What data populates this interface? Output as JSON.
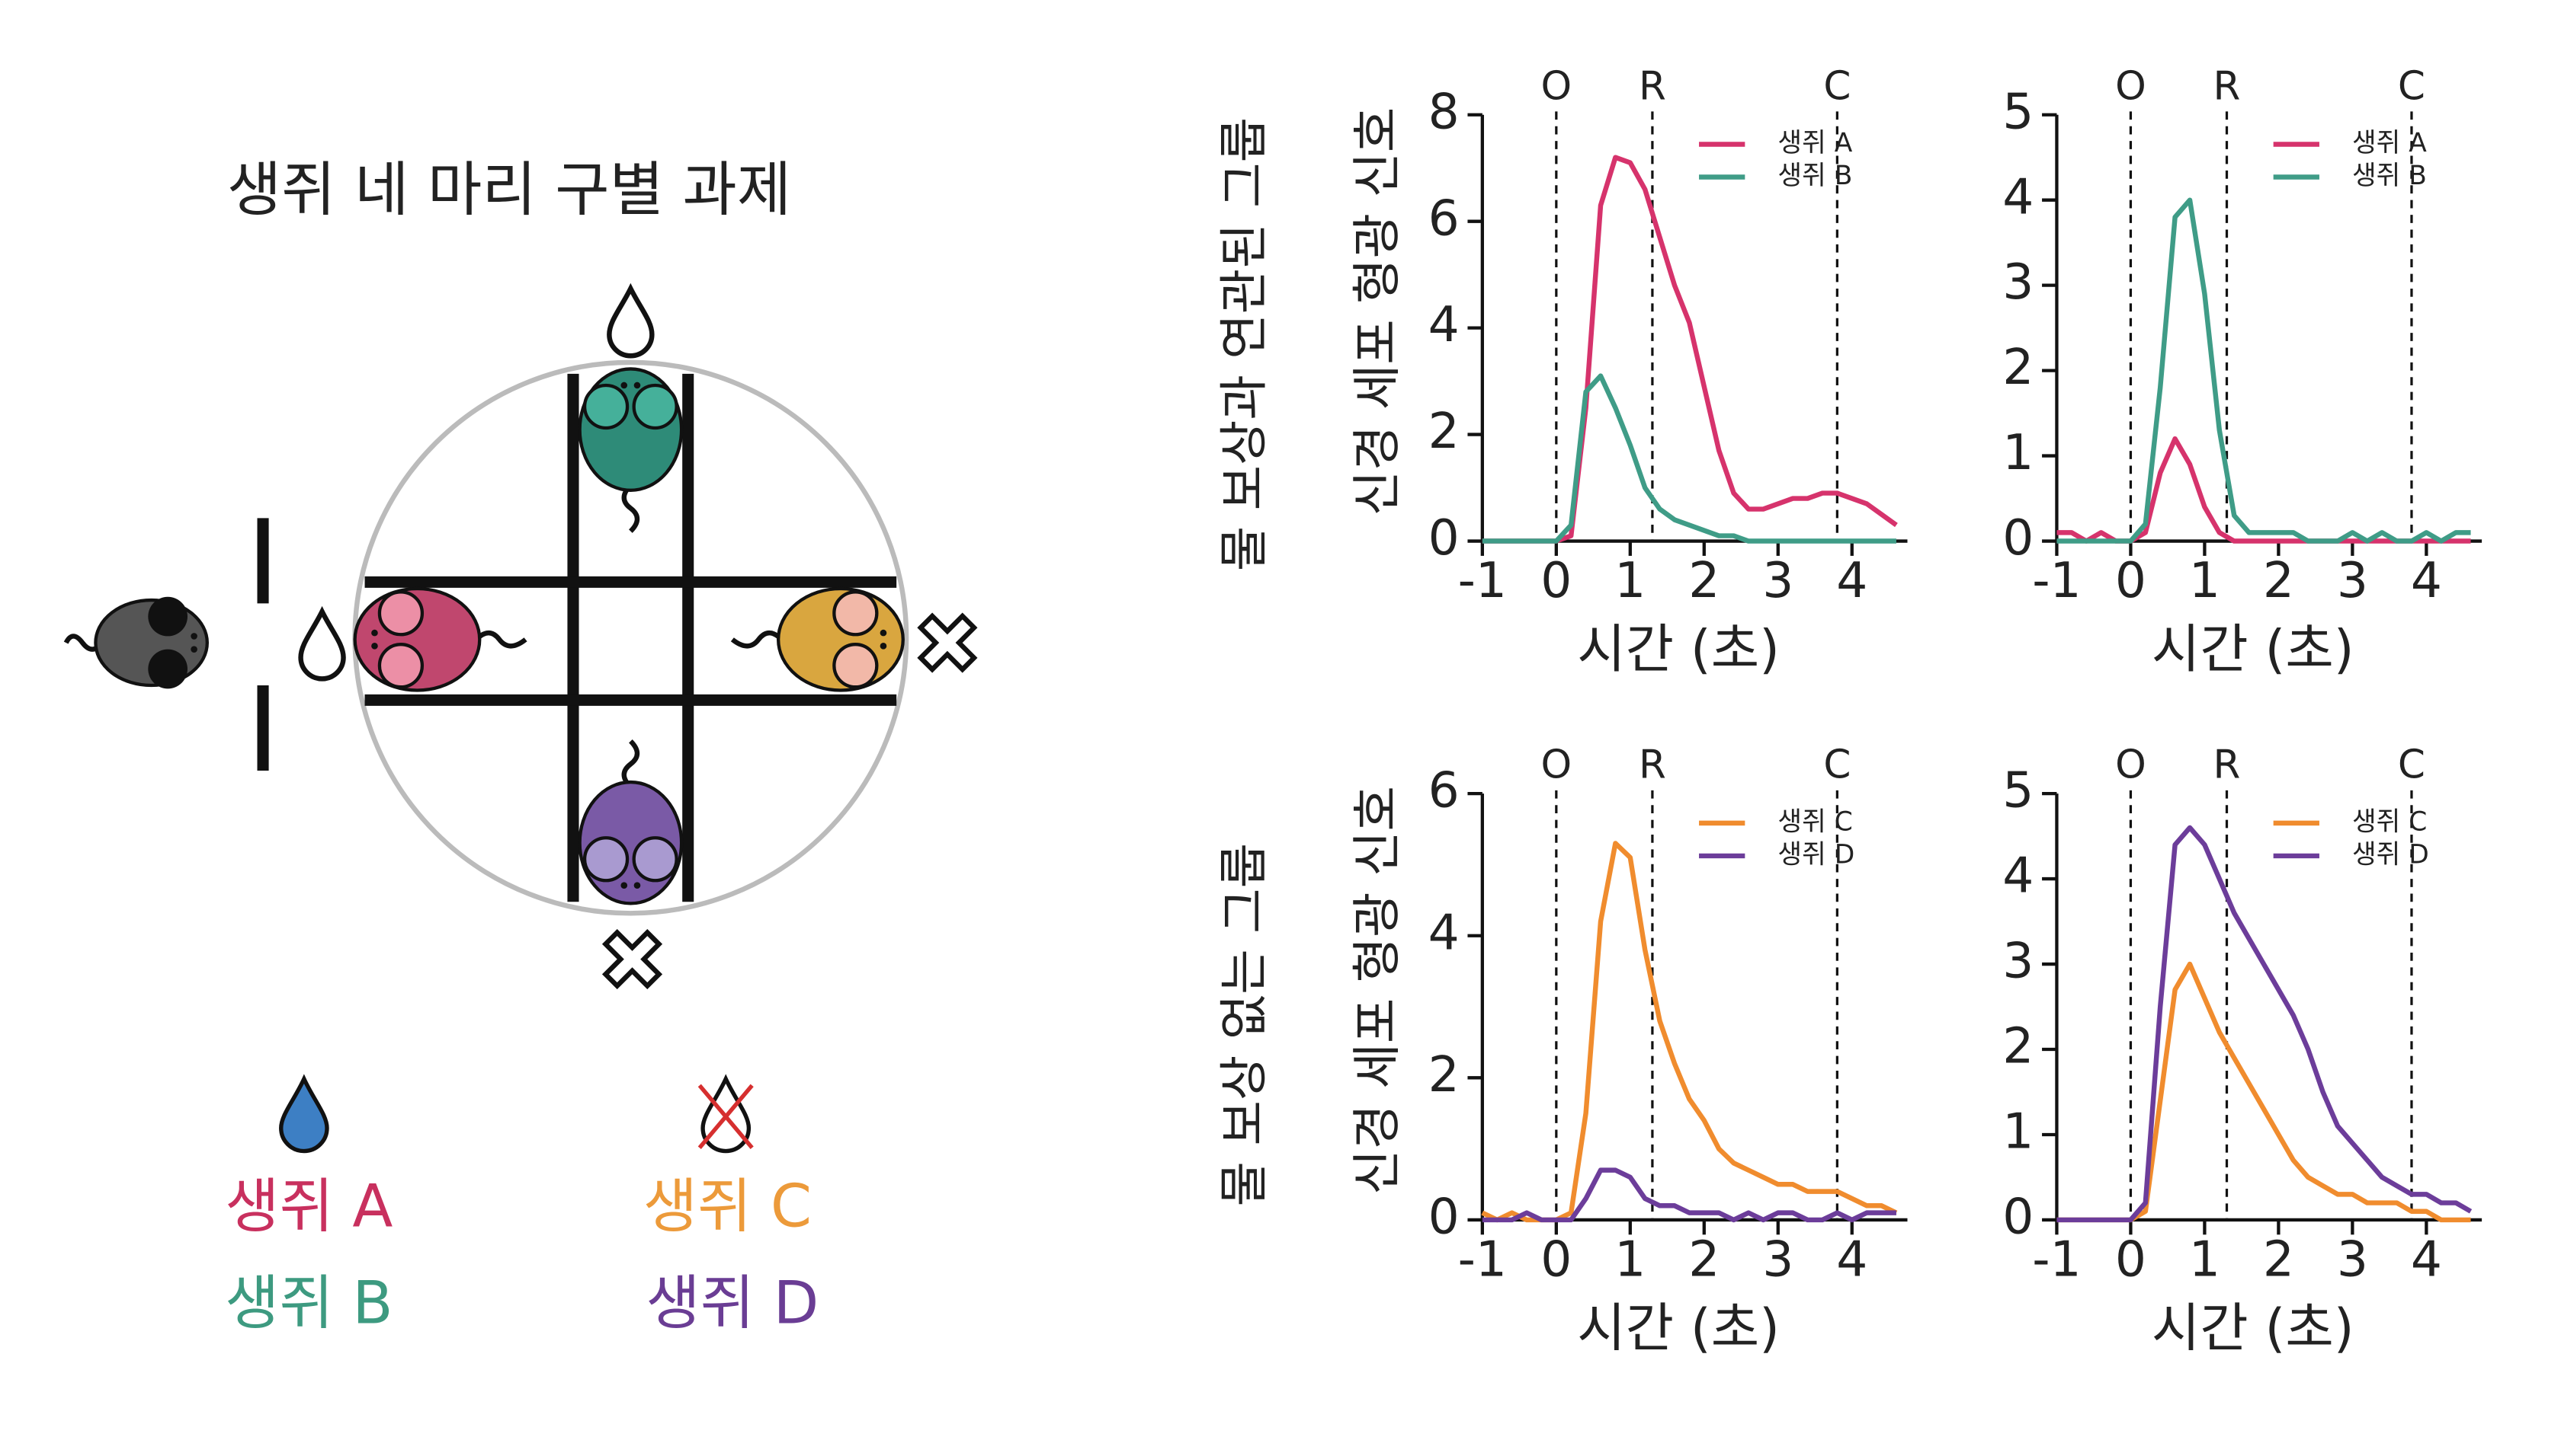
{
  "diagram": {
    "title": "생쥐 네 마리 구별 과제",
    "legend": [
      "생쥐 A",
      "생쥐 B",
      "생쥐 C",
      "생쥐 D"
    ]
  },
  "row_labels": [
    "물 보상과 연관된 그룹",
    "물 보상 없는 그룹"
  ],
  "chart_data": [
    {
      "type": "line",
      "ylabel": "신경 세포 형광 신호",
      "xlabel": "시간 (초)",
      "xlim": [
        -1,
        4.75
      ],
      "xticks": [
        -1,
        0,
        1,
        2,
        3,
        4
      ],
      "ylim": [
        0,
        8
      ],
      "yticks": [
        0,
        2,
        4,
        6,
        8
      ],
      "vlines": [
        {
          "x": 0,
          "label": "O"
        },
        {
          "x": 1.3,
          "label": "R"
        },
        {
          "x": 3.8,
          "label": "C"
        }
      ],
      "x": [
        -1,
        -0.8,
        -0.6,
        -0.4,
        -0.2,
        0,
        0.2,
        0.4,
        0.6,
        0.8,
        1.0,
        1.2,
        1.4,
        1.6,
        1.8,
        2.0,
        2.2,
        2.4,
        2.6,
        2.8,
        3.0,
        3.2,
        3.4,
        3.6,
        3.8,
        4.0,
        4.2,
        4.4,
        4.6
      ],
      "series": [
        {
          "name": "생쥐 A",
          "color": "#d6336c",
          "values": [
            0,
            0,
            0,
            0,
            0,
            0,
            0.1,
            2.5,
            6.3,
            7.2,
            7.1,
            6.6,
            5.7,
            4.8,
            4.1,
            2.9,
            1.7,
            0.9,
            0.6,
            0.6,
            0.7,
            0.8,
            0.8,
            0.9,
            0.9,
            0.8,
            0.7,
            0.5,
            0.3
          ]
        },
        {
          "name": "생쥐 B",
          "color": "#3f9c87",
          "values": [
            0,
            0,
            0,
            0,
            0,
            0,
            0.3,
            2.8,
            3.1,
            2.5,
            1.8,
            1.0,
            0.6,
            0.4,
            0.3,
            0.2,
            0.1,
            0.1,
            0,
            0,
            0,
            0,
            0,
            0,
            0,
            0,
            0,
            0,
            0
          ]
        }
      ]
    },
    {
      "type": "line",
      "xlabel": "시간 (초)",
      "xlim": [
        -1,
        4.75
      ],
      "xticks": [
        -1,
        0,
        1,
        2,
        3,
        4
      ],
      "ylim": [
        0,
        5
      ],
      "yticks": [
        0,
        1,
        2,
        3,
        4,
        5
      ],
      "vlines": [
        {
          "x": 0,
          "label": "O"
        },
        {
          "x": 1.3,
          "label": "R"
        },
        {
          "x": 3.8,
          "label": "C"
        }
      ],
      "x": [
        -1,
        -0.8,
        -0.6,
        -0.4,
        -0.2,
        0,
        0.2,
        0.4,
        0.6,
        0.8,
        1.0,
        1.2,
        1.4,
        1.6,
        1.8,
        2.0,
        2.2,
        2.4,
        2.6,
        2.8,
        3.0,
        3.2,
        3.4,
        3.6,
        3.8,
        4.0,
        4.2,
        4.4,
        4.6
      ],
      "series": [
        {
          "name": "생쥐 A",
          "color": "#d6336c",
          "values": [
            0.1,
            0.1,
            0,
            0.1,
            0,
            0,
            0.1,
            0.8,
            1.2,
            0.9,
            0.4,
            0.1,
            0,
            0,
            0,
            0,
            0,
            0,
            0,
            0,
            0,
            0,
            0,
            0,
            0,
            0,
            0,
            0,
            0
          ]
        },
        {
          "name": "생쥐 B",
          "color": "#3f9c87",
          "values": [
            0,
            0,
            0,
            0,
            0,
            0,
            0.2,
            1.8,
            3.8,
            4.0,
            2.9,
            1.3,
            0.3,
            0.1,
            0.1,
            0.1,
            0.1,
            0,
            0,
            0,
            0.1,
            0,
            0.1,
            0,
            0,
            0.1,
            0,
            0.1,
            0.1
          ]
        }
      ]
    },
    {
      "type": "line",
      "ylabel": "신경 세포 형광 신호",
      "xlabel": "시간 (초)",
      "xlim": [
        -1,
        4.75
      ],
      "xticks": [
        -1,
        0,
        1,
        2,
        3,
        4
      ],
      "ylim": [
        0,
        6
      ],
      "yticks": [
        0,
        2,
        4,
        6
      ],
      "vlines": [
        {
          "x": 0,
          "label": "O"
        },
        {
          "x": 1.3,
          "label": "R"
        },
        {
          "x": 3.8,
          "label": "C"
        }
      ],
      "x": [
        -1,
        -0.8,
        -0.6,
        -0.4,
        -0.2,
        0,
        0.2,
        0.4,
        0.6,
        0.8,
        1.0,
        1.2,
        1.4,
        1.6,
        1.8,
        2.0,
        2.2,
        2.4,
        2.6,
        2.8,
        3.0,
        3.2,
        3.4,
        3.6,
        3.8,
        4.0,
        4.2,
        4.4,
        4.6
      ],
      "series": [
        {
          "name": "생쥐 C",
          "color": "#f08c2e",
          "values": [
            0.1,
            0,
            0.1,
            0,
            0,
            0,
            0.1,
            1.5,
            4.2,
            5.3,
            5.1,
            3.8,
            2.8,
            2.2,
            1.7,
            1.4,
            1.0,
            0.8,
            0.7,
            0.6,
            0.5,
            0.5,
            0.4,
            0.4,
            0.4,
            0.3,
            0.2,
            0.2,
            0.1
          ]
        },
        {
          "name": "생쥐 D",
          "color": "#6c3d9a",
          "values": [
            0,
            0,
            0,
            0.1,
            0,
            0,
            0,
            0.3,
            0.7,
            0.7,
            0.6,
            0.3,
            0.2,
            0.2,
            0.1,
            0.1,
            0.1,
            0,
            0.1,
            0,
            0.1,
            0.1,
            0,
            0,
            0.1,
            0,
            0.1,
            0.1,
            0.1
          ]
        }
      ]
    },
    {
      "type": "line",
      "xlabel": "시간 (초)",
      "xlim": [
        -1,
        4.75
      ],
      "xticks": [
        -1,
        0,
        1,
        2,
        3,
        4
      ],
      "ylim": [
        0,
        5
      ],
      "yticks": [
        0,
        1,
        2,
        3,
        4,
        5
      ],
      "vlines": [
        {
          "x": 0,
          "label": "O"
        },
        {
          "x": 1.3,
          "label": "R"
        },
        {
          "x": 3.8,
          "label": "C"
        }
      ],
      "x": [
        -1,
        -0.8,
        -0.6,
        -0.4,
        -0.2,
        0,
        0.2,
        0.4,
        0.6,
        0.8,
        1.0,
        1.2,
        1.4,
        1.6,
        1.8,
        2.0,
        2.2,
        2.4,
        2.6,
        2.8,
        3.0,
        3.2,
        3.4,
        3.6,
        3.8,
        4.0,
        4.2,
        4.4,
        4.6
      ],
      "series": [
        {
          "name": "생쥐 C",
          "color": "#f08c2e",
          "values": [
            0,
            0,
            0,
            0,
            0,
            0,
            0.1,
            1.4,
            2.7,
            3.0,
            2.6,
            2.2,
            1.9,
            1.6,
            1.3,
            1.0,
            0.7,
            0.5,
            0.4,
            0.3,
            0.3,
            0.2,
            0.2,
            0.2,
            0.1,
            0.1,
            0,
            0,
            0
          ]
        },
        {
          "name": "생쥐 D",
          "color": "#6c3d9a",
          "values": [
            0,
            0,
            0,
            0,
            0,
            0,
            0.2,
            2.5,
            4.4,
            4.6,
            4.4,
            4.0,
            3.6,
            3.3,
            3.0,
            2.7,
            2.4,
            2.0,
            1.5,
            1.1,
            0.9,
            0.7,
            0.5,
            0.4,
            0.3,
            0.3,
            0.2,
            0.2,
            0.1
          ]
        }
      ]
    }
  ]
}
